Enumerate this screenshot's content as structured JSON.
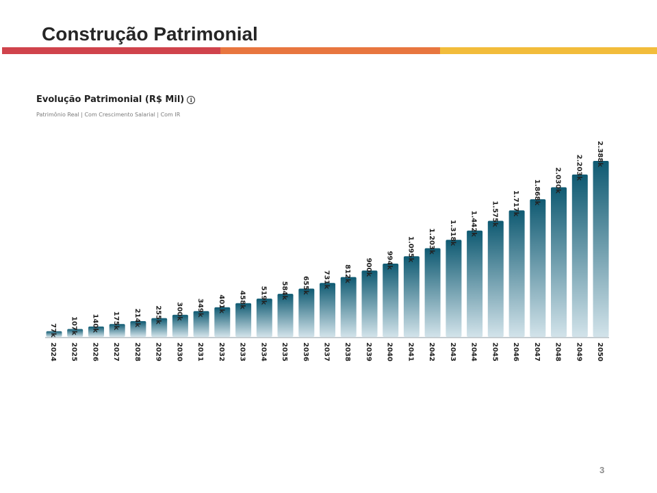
{
  "slide": {
    "title": "Construção Patrimonial",
    "page_number": "3",
    "accent_colors": [
      "#d0434c",
      "#e8763f",
      "#f2bc3b"
    ]
  },
  "chart_title": "Evolução Patrimonial (R$ Mil)",
  "chart_subtitle": "Patrimônio Real | Com Crescimento Salarial | Com IR",
  "info_icon": "info-icon",
  "chart_data": {
    "type": "bar",
    "title": "Evolução Patrimonial (R$ Mil)",
    "subtitle": "Patrimônio Real | Com Crescimento Salarial | Com IR",
    "xlabel": "",
    "ylabel": "",
    "categories": [
      "2024",
      "2025",
      "2026",
      "2027",
      "2028",
      "2029",
      "2030",
      "2031",
      "2032",
      "2033",
      "2034",
      "2035",
      "2036",
      "2037",
      "2038",
      "2039",
      "2040",
      "2041",
      "2042",
      "2043",
      "2044",
      "2045",
      "2046",
      "2047",
      "2048",
      "2049",
      "2050"
    ],
    "values": [
      77,
      107,
      140,
      175,
      214,
      255,
      300,
      349,
      401,
      458,
      519,
      584,
      655,
      731,
      812,
      900,
      994,
      1095,
      1203,
      1318,
      1442,
      1575,
      1717,
      1868,
      2030,
      2203,
      2388
    ],
    "labels": [
      "77k",
      "107k",
      "140k",
      "175k",
      "214k",
      "255k",
      "300k",
      "349k",
      "401k",
      "458k",
      "519k",
      "584k",
      "655k",
      "731k",
      "812k",
      "900k",
      "994k",
      "1.095k",
      "1.203k",
      "1.318k",
      "1.442k",
      "1.575k",
      "1.717k",
      "1.868k",
      "2.030k",
      "2.203k",
      "2.388k"
    ],
    "ylim": [
      0,
      2388
    ],
    "grid": false,
    "bar_color_top": "#0f5a72",
    "bar_color_bottom": "#d2e3ea"
  }
}
